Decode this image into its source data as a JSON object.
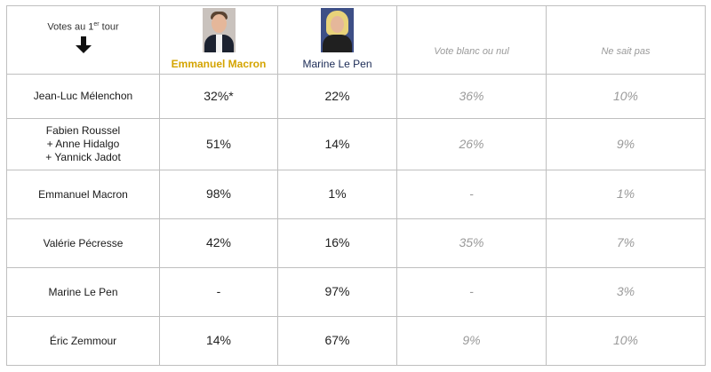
{
  "header": {
    "corner_label": "Votes au 1",
    "corner_sup": "er",
    "corner_suffix": " tour",
    "candidates": [
      {
        "name": "Emmanuel Macron",
        "highlight_color": "#d4a400"
      },
      {
        "name": "Marine Le Pen",
        "color": "#1a2a55"
      }
    ],
    "options": [
      "Vote blanc ou nul",
      "Ne sait pas"
    ]
  },
  "rows": [
    {
      "label_lines": [
        "Jean-Luc Mélenchon"
      ],
      "macron": "32%*",
      "lepen": "22%",
      "blanc": "36%",
      "nsp": "10%"
    },
    {
      "label_lines": [
        "Fabien Roussel",
        "+ Anne Hidalgo",
        "+ Yannick Jadot"
      ],
      "macron": "51%",
      "lepen": "14%",
      "blanc": "26%",
      "nsp": "9%"
    },
    {
      "label_lines": [
        "Emmanuel Macron"
      ],
      "macron": "98%",
      "lepen": "1%",
      "blanc": "-",
      "nsp": "1%"
    },
    {
      "label_lines": [
        "Valérie Pécresse"
      ],
      "macron": "42%",
      "lepen": "16%",
      "blanc": "35%",
      "nsp": "7%"
    },
    {
      "label_lines": [
        "Marine Le Pen"
      ],
      "macron": "-",
      "lepen": "97%",
      "blanc": "-",
      "nsp": "3%"
    },
    {
      "label_lines": [
        "Éric Zemmour"
      ],
      "macron": "14%",
      "lepen": "67%",
      "blanc": "9%",
      "nsp": "10%"
    }
  ],
  "icons": {
    "corner_arrow": "down-arrow-icon"
  }
}
